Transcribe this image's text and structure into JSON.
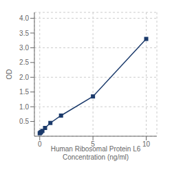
{
  "chart_data": {
    "type": "line",
    "x": [
      0,
      0.0625,
      0.125,
      0.25,
      0.5,
      1,
      2,
      5,
      10
    ],
    "values": [
      0.1,
      0.12,
      0.14,
      0.18,
      0.28,
      0.45,
      0.7,
      1.35,
      3.3
    ],
    "xlabel": "Human Ribosomal Protein L6\nConcentration (ng/ml)",
    "ylabel": "OD",
    "xlim": [
      -0.5,
      11
    ],
    "ylim": [
      0,
      4.2
    ],
    "xticks": [
      0,
      5,
      10
    ],
    "yticks": [
      0.5,
      {
        "value": 1.0,
        "label": "1.0"
      },
      1.5,
      {
        "value": 2.0,
        "label": "2.0"
      },
      2.5,
      {
        "value": 3.0,
        "label": "3.0"
      },
      3.5,
      {
        "value": 4.0,
        "label": "4.0"
      }
    ],
    "grid": true,
    "marker": "square",
    "color": "#1b3a6b"
  }
}
